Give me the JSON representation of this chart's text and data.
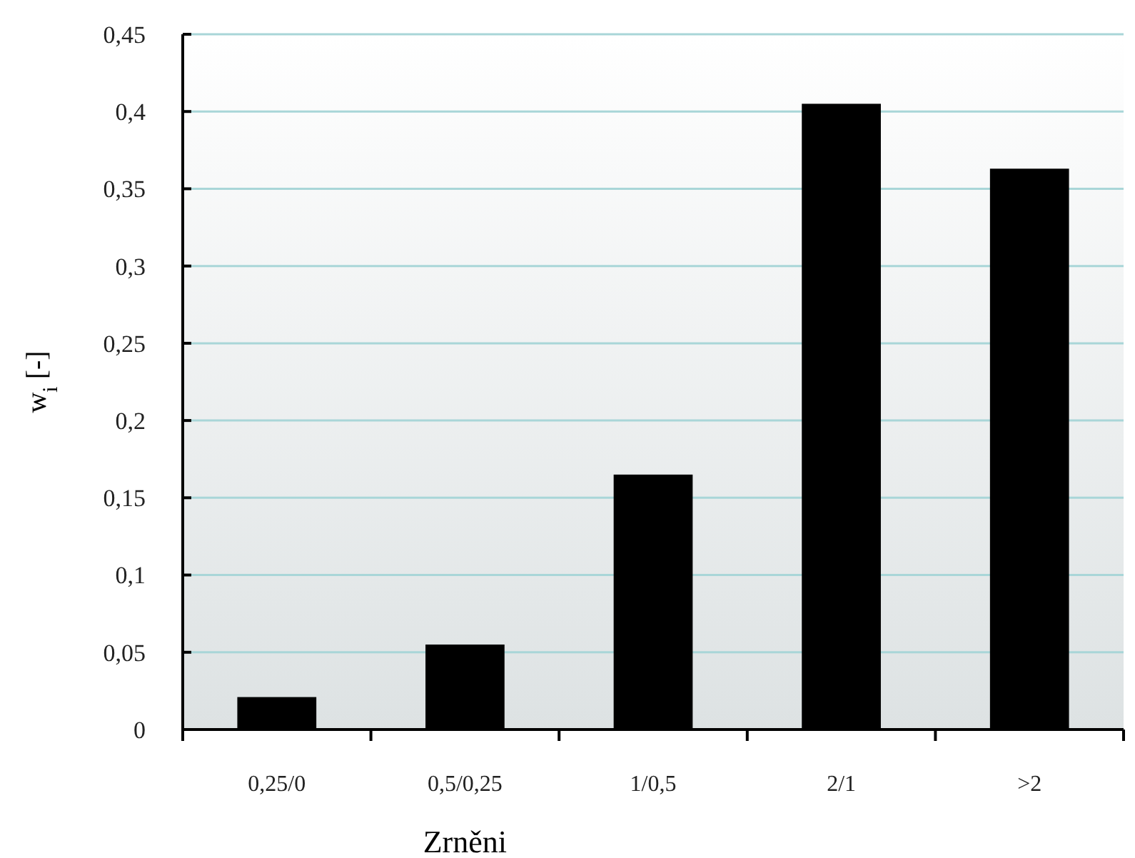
{
  "chart_data": {
    "type": "bar",
    "xlabel": "Zrněni",
    "ylabel": "w$_{i}$ [-]",
    "categories": [
      "0,25/0",
      "0,5/0,25",
      "1/0,5",
      "2/1",
      ">2"
    ],
    "values": [
      0.021,
      0.055,
      0.165,
      0.405,
      0.363
    ],
    "color": "#000000",
    "ylim": [
      0,
      0.45
    ],
    "yticks": [
      0,
      {
        "value": 0.05,
        "label": "0,05"
      },
      {
        "value": 0.1,
        "label": "0,1"
      },
      {
        "value": 0.15,
        "label": "0,15"
      },
      {
        "value": 0.2,
        "label": "0,2"
      },
      {
        "value": 0.25,
        "label": "0,25"
      },
      {
        "value": 0.3,
        "label": "0,3"
      },
      {
        "value": 0.35,
        "label": "0,35"
      },
      {
        "value": 0.4,
        "label": "0,4"
      },
      {
        "value": 0.45,
        "label": "0,45"
      }
    ],
    "grid": "y"
  }
}
